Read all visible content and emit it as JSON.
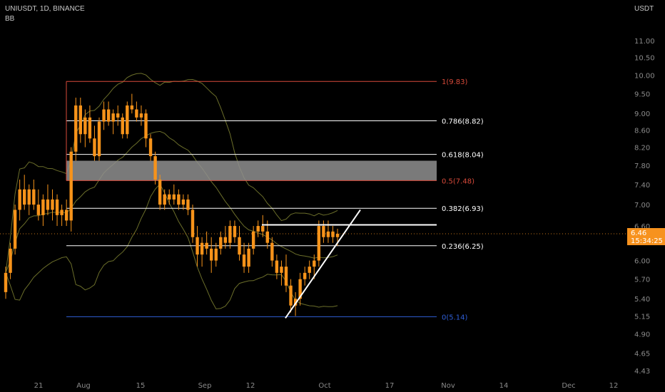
{
  "header": {
    "symbol": "UNIUSDT, 1D, BINANCE",
    "indicator": "BB"
  },
  "price_axis": {
    "currency": "USDT"
  },
  "last_price": {
    "price": "6.46",
    "countdown": "15:34:25"
  },
  "colors": {
    "background": "#000000",
    "candle": "#f7931a",
    "band": "#6b6e2a",
    "fib_line": "#ffffff",
    "fib_top": "#d84a3a",
    "fib_bottom": "#2f5fd8",
    "zone": "#8f8f8f",
    "tag": "#f7921e"
  },
  "chart_data": {
    "type": "candlestick",
    "title": "UNIUSDT, 1D, BINANCE",
    "ylabel": "USDT",
    "y_scale": "log",
    "ylim": [
      4.35,
      11.8
    ],
    "y_ticks": [
      "11.00",
      "10.50",
      "10.00",
      "9.50",
      "9.00",
      "8.60",
      "8.20",
      "7.80",
      "7.40",
      "7.00",
      "6.60",
      "6.00",
      "5.70",
      "5.40",
      "5.15",
      "4.90",
      "4.65",
      "4.43"
    ],
    "x_ticks": [
      "21",
      "Aug",
      "15",
      "Sep",
      "12",
      "Oct",
      "17",
      "Nov",
      "14",
      "Dec",
      "12"
    ],
    "fib_levels": [
      {
        "label": "1(9.83)",
        "value": 9.83
      },
      {
        "label": "0.786(8.82)",
        "value": 8.82
      },
      {
        "label": "0.618(8.04)",
        "value": 8.04
      },
      {
        "label": "0.5(7.48)",
        "value": 7.48
      },
      {
        "label": "0.382(6.93)",
        "value": 6.93
      },
      {
        "label": "0.236(6.25)",
        "value": 6.25
      },
      {
        "label": "0(5.14)",
        "value": 5.14
      }
    ],
    "zone": {
      "low": 7.48,
      "high": 7.9
    },
    "resistance_level": 6.62,
    "trendline": {
      "from": [
        5.12
      ],
      "to": [
        6.9
      ]
    },
    "candles": [
      [
        5.5,
        5.9,
        5.4,
        5.8
      ],
      [
        5.8,
        6.3,
        5.7,
        6.2
      ],
      [
        6.2,
        7.0,
        6.1,
        6.9
      ],
      [
        6.9,
        7.5,
        6.7,
        7.3
      ],
      [
        7.3,
        7.6,
        6.9,
        7.0
      ],
      [
        7.0,
        7.4,
        6.8,
        7.3
      ],
      [
        7.3,
        7.5,
        6.9,
        7.0
      ],
      [
        7.0,
        7.3,
        6.7,
        6.8
      ],
      [
        6.8,
        7.2,
        6.6,
        7.1
      ],
      [
        7.1,
        7.4,
        6.8,
        6.9
      ],
      [
        6.9,
        7.3,
        6.7,
        7.1
      ],
      [
        7.1,
        7.2,
        6.6,
        6.8
      ],
      [
        6.8,
        7.0,
        6.6,
        6.9
      ],
      [
        6.9,
        7.1,
        6.6,
        6.7
      ],
      [
        6.7,
        8.2,
        6.5,
        8.1
      ],
      [
        8.1,
        9.4,
        7.9,
        9.2
      ],
      [
        9.2,
        9.4,
        8.3,
        8.5
      ],
      [
        8.5,
        9.1,
        8.2,
        8.9
      ],
      [
        8.9,
        9.2,
        8.3,
        8.4
      ],
      [
        8.4,
        8.7,
        7.9,
        8.0
      ],
      [
        8.0,
        8.9,
        7.9,
        8.8
      ],
      [
        8.8,
        9.3,
        8.6,
        9.1
      ],
      [
        9.1,
        9.3,
        8.7,
        8.8
      ],
      [
        8.8,
        9.1,
        8.5,
        9.0
      ],
      [
        9.0,
        9.2,
        8.7,
        8.9
      ],
      [
        8.9,
        9.0,
        8.4,
        8.5
      ],
      [
        8.5,
        9.3,
        8.4,
        9.2
      ],
      [
        9.2,
        9.5,
        9.0,
        9.1
      ],
      [
        9.1,
        9.3,
        8.8,
        8.9
      ],
      [
        8.9,
        9.2,
        8.7,
        9.0
      ],
      [
        9.0,
        9.1,
        8.2,
        8.4
      ],
      [
        8.4,
        8.5,
        7.9,
        8.0
      ],
      [
        8.0,
        8.1,
        7.4,
        7.5
      ],
      [
        7.5,
        7.6,
        6.9,
        7.0
      ],
      [
        7.0,
        7.3,
        6.9,
        7.2
      ],
      [
        7.2,
        7.3,
        7.0,
        7.1
      ],
      [
        7.1,
        7.4,
        7.0,
        7.2
      ],
      [
        7.2,
        7.3,
        6.9,
        7.0
      ],
      [
        7.0,
        7.2,
        6.9,
        7.1
      ],
      [
        7.1,
        7.2,
        6.8,
        6.9
      ],
      [
        6.9,
        7.0,
        6.3,
        6.4
      ],
      [
        6.4,
        6.6,
        5.9,
        6.1
      ],
      [
        6.1,
        6.4,
        5.9,
        6.3
      ],
      [
        6.3,
        6.5,
        6.1,
        6.2
      ],
      [
        6.2,
        6.4,
        5.8,
        6.0
      ],
      [
        6.0,
        6.3,
        5.9,
        6.2
      ],
      [
        6.2,
        6.5,
        6.1,
        6.4
      ],
      [
        6.4,
        6.6,
        6.2,
        6.3
      ],
      [
        6.3,
        6.7,
        6.2,
        6.6
      ],
      [
        6.6,
        6.7,
        6.3,
        6.4
      ],
      [
        6.4,
        6.6,
        6.0,
        6.1
      ],
      [
        6.1,
        6.3,
        5.8,
        5.9
      ],
      [
        5.9,
        6.3,
        5.8,
        6.2
      ],
      [
        6.2,
        6.6,
        6.1,
        6.5
      ],
      [
        6.5,
        6.7,
        6.4,
        6.6
      ],
      [
        6.6,
        6.8,
        6.4,
        6.5
      ],
      [
        6.5,
        6.7,
        6.2,
        6.3
      ],
      [
        6.3,
        6.4,
        5.9,
        6.0
      ],
      [
        6.0,
        6.1,
        5.7,
        5.8
      ],
      [
        5.8,
        6.0,
        5.6,
        5.9
      ],
      [
        5.9,
        6.1,
        5.5,
        5.6
      ],
      [
        5.6,
        5.7,
        5.2,
        5.3
      ],
      [
        5.3,
        5.5,
        5.15,
        5.4
      ],
      [
        5.4,
        5.8,
        5.3,
        5.7
      ],
      [
        5.7,
        5.9,
        5.6,
        5.8
      ],
      [
        5.8,
        6.0,
        5.7,
        5.9
      ],
      [
        5.9,
        6.1,
        5.7,
        6.0
      ],
      [
        6.0,
        6.7,
        5.9,
        6.6
      ],
      [
        6.6,
        6.7,
        6.3,
        6.4
      ],
      [
        6.4,
        6.7,
        6.3,
        6.5
      ],
      [
        6.5,
        6.6,
        6.3,
        6.4
      ],
      [
        6.4,
        6.55,
        6.25,
        6.46
      ]
    ]
  }
}
